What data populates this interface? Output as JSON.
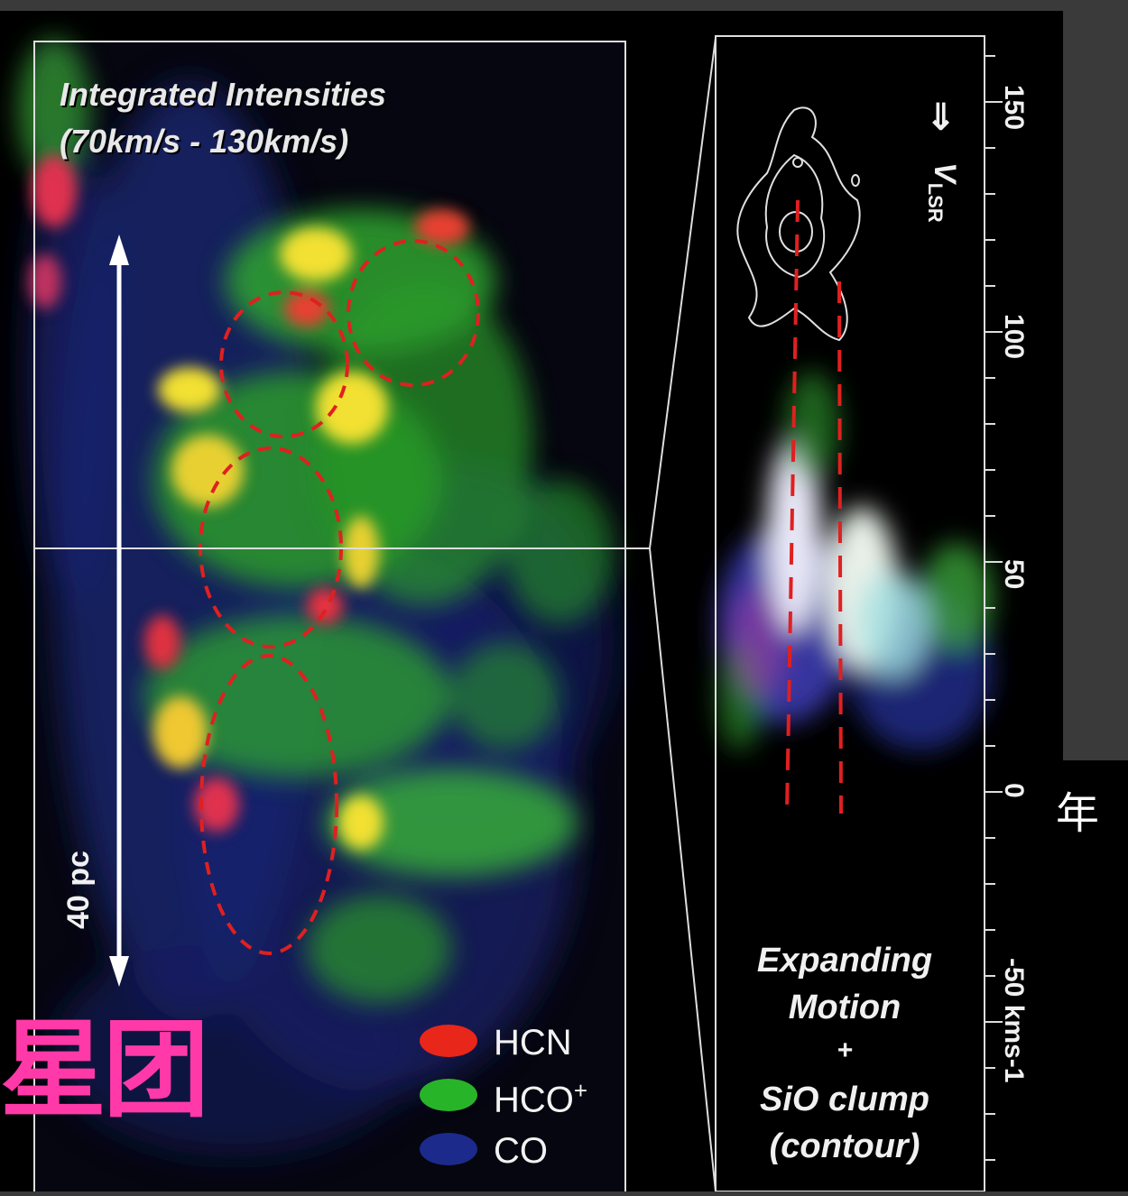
{
  "left_panel": {
    "title_line1": "Integrated Intensities",
    "title_line2": "(70km/s - 130km/s)",
    "scale_label": "40 pc"
  },
  "legend": [
    {
      "label": "HCN",
      "color": "#e8261a"
    },
    {
      "label": "HCO",
      "superscript": "+",
      "color": "#28b428"
    },
    {
      "label": "CO",
      "color": "#1c2a8c"
    }
  ],
  "right_panel": {
    "axis_label": "V",
    "axis_label_sub": "LSR",
    "arrow": "⇒",
    "ticks": [
      "150",
      "100",
      "50",
      "0",
      "-50 kms-1"
    ],
    "caption_line1": "Expanding",
    "caption_line2": "Motion",
    "caption_line3": "+",
    "caption_line4": "SiO clump",
    "caption_line5": "(contour)"
  },
  "overlay": {
    "cjk_large": "星团",
    "cjk_small": "年"
  },
  "colors": {
    "background": "#3a3a3a",
    "figure": "#000000",
    "dashed_circles": "#e02020",
    "overlay_text": "#ff3aa8"
  }
}
